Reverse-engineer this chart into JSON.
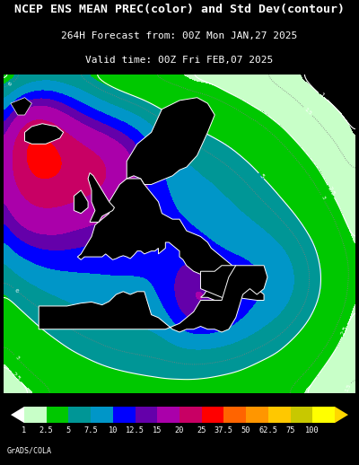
{
  "title_line1": "NCEP ENS MEAN PREC(color) and Std Dev(contour)",
  "title_line2": "264H Forecast from: 00Z Mon JAN,27 2025",
  "title_line3": "Valid time: 00Z Fri FEB,07 2025",
  "colorbar_labels": [
    "1",
    "2.5",
    "5",
    "7.5",
    "10",
    "12.5",
    "15",
    "20",
    "25",
    "37.5",
    "50",
    "62.5",
    "75",
    "100"
  ],
  "colorbar_colors": [
    "#c8ffc8",
    "#00c800",
    "#009696",
    "#0096c8",
    "#0000ff",
    "#6400aa",
    "#aa00aa",
    "#c80064",
    "#ff0000",
    "#ff6400",
    "#ff9600",
    "#ffc800",
    "#c8c800",
    "#ffff00"
  ],
  "background_color": "#000000",
  "text_color": "#ffffff",
  "grads_label": "GrADS/COLA",
  "title_fontsize": 9.5,
  "subtitle_fontsize": 8.0,
  "fig_width": 4.0,
  "fig_height": 5.18
}
